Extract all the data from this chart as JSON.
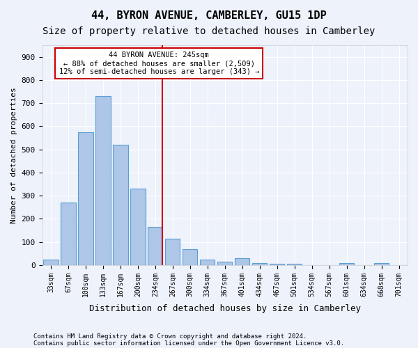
{
  "title1": "44, BYRON AVENUE, CAMBERLEY, GU15 1DP",
  "title2": "Size of property relative to detached houses in Camberley",
  "xlabel": "Distribution of detached houses by size in Camberley",
  "ylabel": "Number of detached properties",
  "footnote1": "Contains HM Land Registry data © Crown copyright and database right 2024.",
  "footnote2": "Contains public sector information licensed under the Open Government Licence v3.0.",
  "bar_labels": [
    "33sqm",
    "67sqm",
    "100sqm",
    "133sqm",
    "167sqm",
    "200sqm",
    "234sqm",
    "267sqm",
    "300sqm",
    "334sqm",
    "367sqm",
    "401sqm",
    "434sqm",
    "467sqm",
    "501sqm",
    "534sqm",
    "567sqm",
    "601sqm",
    "634sqm",
    "668sqm",
    "701sqm"
  ],
  "bar_values": [
    25,
    270,
    575,
    730,
    520,
    330,
    165,
    115,
    70,
    25,
    15,
    30,
    10,
    5,
    5,
    0,
    0,
    10,
    0,
    10,
    0
  ],
  "bar_color": "#aec6e8",
  "bar_edge_color": "#5a9fd4",
  "annotation_line1": "44 BYRON AVENUE: 245sqm",
  "annotation_line2": "← 88% of detached houses are smaller (2,509)",
  "annotation_line3": "12% of semi-detached houses are larger (343) →",
  "annotation_box_color": "#ffffff",
  "annotation_box_edge_color": "#cc0000",
  "red_line_color": "#cc0000",
  "red_line_x": 6.42,
  "ylim": [
    0,
    950
  ],
  "yticks": [
    0,
    100,
    200,
    300,
    400,
    500,
    600,
    700,
    800,
    900
  ],
  "background_color": "#eef2fb",
  "grid_color": "#ffffff",
  "title1_fontsize": 11,
  "title2_fontsize": 10
}
